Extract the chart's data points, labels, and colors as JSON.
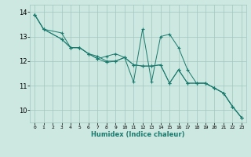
{
  "xlabel": "Humidex (Indice chaleur)",
  "bg_color": "#cce8e0",
  "grid_color": "#a0c8be",
  "line_color": "#1a7a6e",
  "xlim": [
    -0.5,
    23.5
  ],
  "ylim": [
    9.5,
    14.3
  ],
  "xticks": [
    0,
    1,
    2,
    3,
    4,
    5,
    6,
    7,
    8,
    9,
    10,
    11,
    12,
    13,
    14,
    15,
    16,
    17,
    18,
    19,
    20,
    21,
    22,
    23
  ],
  "yticks": [
    10,
    11,
    12,
    13,
    14
  ],
  "line1_x": [
    0,
    1,
    3,
    4,
    5,
    6,
    7,
    8,
    9,
    10,
    11,
    12,
    13,
    14,
    15,
    16,
    17,
    18,
    19,
    20,
    21,
    22,
    23
  ],
  "line1_y": [
    13.9,
    13.3,
    12.9,
    12.55,
    12.55,
    12.3,
    12.1,
    11.95,
    12.0,
    12.15,
    11.85,
    11.8,
    11.8,
    11.85,
    11.1,
    11.65,
    11.1,
    11.1,
    11.1,
    10.9,
    10.7,
    10.15,
    9.7
  ],
  "line2_x": [
    0,
    1,
    3,
    4,
    5,
    6,
    7,
    8,
    9,
    10,
    11,
    12,
    13,
    14,
    15,
    16,
    17,
    18,
    19,
    20,
    21,
    22,
    23
  ],
  "line2_y": [
    13.9,
    13.3,
    13.15,
    12.55,
    12.55,
    12.3,
    12.1,
    12.2,
    12.3,
    12.15,
    11.85,
    11.8,
    11.8,
    11.85,
    11.1,
    11.65,
    11.1,
    11.1,
    11.1,
    10.9,
    10.7,
    10.15,
    9.7
  ],
  "line3_x": [
    0,
    1,
    3,
    4,
    5,
    6,
    7,
    8,
    9,
    10,
    11,
    12,
    13,
    14,
    15,
    16,
    17,
    18,
    19,
    20,
    21,
    22,
    23
  ],
  "line3_y": [
    13.9,
    13.3,
    12.9,
    12.55,
    12.55,
    12.3,
    12.2,
    12.0,
    12.0,
    12.15,
    11.15,
    13.3,
    11.15,
    13.0,
    13.1,
    12.55,
    11.65,
    11.1,
    11.1,
    10.9,
    10.7,
    10.15,
    9.7
  ]
}
